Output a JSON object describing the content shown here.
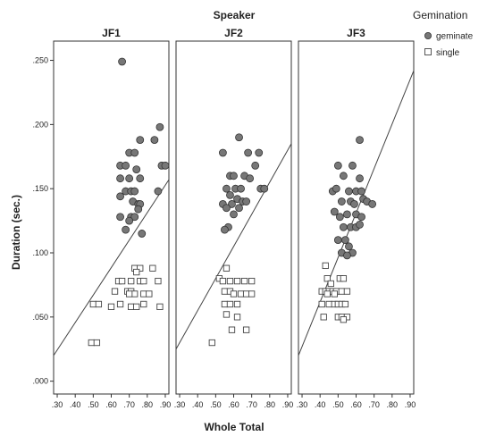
{
  "chart_data": {
    "type": "scatter",
    "super_title": "Speaker",
    "xlabel": "Whole Total",
    "ylabel": "Duration (sec.)",
    "xlim": [
      0.28,
      0.92
    ],
    "ylim": [
      -0.01,
      0.265
    ],
    "x_ticks": [
      ".30",
      ".40",
      ".50",
      ".60",
      ".70",
      ".80",
      ".90"
    ],
    "x_tick_values": [
      0.3,
      0.4,
      0.5,
      0.6,
      0.7,
      0.8,
      0.9
    ],
    "y_ticks": [
      ".000",
      ".050",
      ".100",
      ".150",
      ".200",
      ".250"
    ],
    "y_tick_values": [
      0.0,
      0.05,
      0.1,
      0.15,
      0.2,
      0.25
    ],
    "legend": {
      "title": "Gemination",
      "placement": "top-right",
      "entries": [
        {
          "label": "geminate",
          "marker": "filled-circle",
          "color": "#777777"
        },
        {
          "label": "single",
          "marker": "open-square",
          "color": "#ffffff"
        }
      ]
    },
    "panels": [
      {
        "title": "JF1",
        "fit_line": [
          [
            0.28,
            0.02
          ],
          [
            0.92,
            0.157
          ]
        ],
        "geminate": [
          [
            0.66,
            0.249
          ],
          [
            0.87,
            0.198
          ],
          [
            0.76,
            0.188
          ],
          [
            0.84,
            0.188
          ],
          [
            0.7,
            0.178
          ],
          [
            0.73,
            0.178
          ],
          [
            0.88,
            0.168
          ],
          [
            0.9,
            0.168
          ],
          [
            0.65,
            0.168
          ],
          [
            0.68,
            0.168
          ],
          [
            0.74,
            0.165
          ],
          [
            0.65,
            0.158
          ],
          [
            0.7,
            0.158
          ],
          [
            0.76,
            0.158
          ],
          [
            0.68,
            0.148
          ],
          [
            0.71,
            0.148
          ],
          [
            0.73,
            0.148
          ],
          [
            0.86,
            0.148
          ],
          [
            0.65,
            0.144
          ],
          [
            0.72,
            0.14
          ],
          [
            0.75,
            0.138
          ],
          [
            0.76,
            0.138
          ],
          [
            0.75,
            0.134
          ],
          [
            0.65,
            0.128
          ],
          [
            0.71,
            0.128
          ],
          [
            0.73,
            0.128
          ],
          [
            0.7,
            0.125
          ],
          [
            0.68,
            0.118
          ],
          [
            0.77,
            0.115
          ]
        ],
        "single": [
          [
            0.73,
            0.088
          ],
          [
            0.76,
            0.088
          ],
          [
            0.83,
            0.088
          ],
          [
            0.74,
            0.085
          ],
          [
            0.64,
            0.078
          ],
          [
            0.66,
            0.078
          ],
          [
            0.71,
            0.078
          ],
          [
            0.76,
            0.078
          ],
          [
            0.78,
            0.078
          ],
          [
            0.86,
            0.078
          ],
          [
            0.62,
            0.07
          ],
          [
            0.69,
            0.07
          ],
          [
            0.71,
            0.07
          ],
          [
            0.73,
            0.068
          ],
          [
            0.78,
            0.068
          ],
          [
            0.81,
            0.068
          ],
          [
            0.7,
            0.068
          ],
          [
            0.5,
            0.06
          ],
          [
            0.53,
            0.06
          ],
          [
            0.6,
            0.058
          ],
          [
            0.65,
            0.06
          ],
          [
            0.71,
            0.058
          ],
          [
            0.74,
            0.058
          ],
          [
            0.78,
            0.06
          ],
          [
            0.87,
            0.058
          ],
          [
            0.49,
            0.03
          ],
          [
            0.52,
            0.03
          ]
        ]
      },
      {
        "title": "JF2",
        "fit_line": [
          [
            0.28,
            0.025
          ],
          [
            0.92,
            0.185
          ]
        ],
        "geminate": [
          [
            0.63,
            0.19
          ],
          [
            0.54,
            0.178
          ],
          [
            0.68,
            0.178
          ],
          [
            0.74,
            0.178
          ],
          [
            0.72,
            0.168
          ],
          [
            0.58,
            0.16
          ],
          [
            0.6,
            0.16
          ],
          [
            0.66,
            0.16
          ],
          [
            0.69,
            0.158
          ],
          [
            0.56,
            0.15
          ],
          [
            0.61,
            0.15
          ],
          [
            0.64,
            0.15
          ],
          [
            0.75,
            0.15
          ],
          [
            0.77,
            0.15
          ],
          [
            0.58,
            0.145
          ],
          [
            0.62,
            0.142
          ],
          [
            0.65,
            0.14
          ],
          [
            0.67,
            0.14
          ],
          [
            0.54,
            0.138
          ],
          [
            0.59,
            0.138
          ],
          [
            0.56,
            0.135
          ],
          [
            0.63,
            0.135
          ],
          [
            0.6,
            0.13
          ],
          [
            0.57,
            0.12
          ],
          [
            0.55,
            0.118
          ]
        ],
        "single": [
          [
            0.56,
            0.088
          ],
          [
            0.52,
            0.08
          ],
          [
            0.54,
            0.078
          ],
          [
            0.58,
            0.078
          ],
          [
            0.62,
            0.078
          ],
          [
            0.66,
            0.078
          ],
          [
            0.7,
            0.078
          ],
          [
            0.55,
            0.07
          ],
          [
            0.58,
            0.07
          ],
          [
            0.6,
            0.068
          ],
          [
            0.64,
            0.068
          ],
          [
            0.67,
            0.068
          ],
          [
            0.7,
            0.068
          ],
          [
            0.55,
            0.06
          ],
          [
            0.58,
            0.06
          ],
          [
            0.62,
            0.06
          ],
          [
            0.56,
            0.052
          ],
          [
            0.62,
            0.05
          ],
          [
            0.59,
            0.04
          ],
          [
            0.67,
            0.04
          ],
          [
            0.48,
            0.03
          ]
        ]
      },
      {
        "title": "JF3",
        "fit_line": [
          [
            0.28,
            0.02
          ],
          [
            0.92,
            0.242
          ]
        ],
        "geminate": [
          [
            0.62,
            0.188
          ],
          [
            0.5,
            0.168
          ],
          [
            0.58,
            0.168
          ],
          [
            0.53,
            0.16
          ],
          [
            0.62,
            0.158
          ],
          [
            0.47,
            0.148
          ],
          [
            0.49,
            0.15
          ],
          [
            0.56,
            0.148
          ],
          [
            0.6,
            0.148
          ],
          [
            0.63,
            0.148
          ],
          [
            0.52,
            0.14
          ],
          [
            0.57,
            0.14
          ],
          [
            0.64,
            0.142
          ],
          [
            0.66,
            0.14
          ],
          [
            0.69,
            0.138
          ],
          [
            0.59,
            0.138
          ],
          [
            0.48,
            0.132
          ],
          [
            0.55,
            0.13
          ],
          [
            0.6,
            0.13
          ],
          [
            0.51,
            0.128
          ],
          [
            0.63,
            0.128
          ],
          [
            0.53,
            0.12
          ],
          [
            0.57,
            0.12
          ],
          [
            0.6,
            0.12
          ],
          [
            0.62,
            0.122
          ],
          [
            0.5,
            0.11
          ],
          [
            0.54,
            0.11
          ],
          [
            0.56,
            0.105
          ],
          [
            0.52,
            0.1
          ],
          [
            0.58,
            0.1
          ],
          [
            0.55,
            0.098
          ]
        ],
        "single": [
          [
            0.43,
            0.09
          ],
          [
            0.44,
            0.08
          ],
          [
            0.51,
            0.08
          ],
          [
            0.53,
            0.08
          ],
          [
            0.46,
            0.076
          ],
          [
            0.41,
            0.07
          ],
          [
            0.43,
            0.07
          ],
          [
            0.45,
            0.07
          ],
          [
            0.47,
            0.07
          ],
          [
            0.49,
            0.07
          ],
          [
            0.52,
            0.07
          ],
          [
            0.55,
            0.07
          ],
          [
            0.44,
            0.068
          ],
          [
            0.48,
            0.068
          ],
          [
            0.41,
            0.06
          ],
          [
            0.45,
            0.06
          ],
          [
            0.48,
            0.06
          ],
          [
            0.5,
            0.06
          ],
          [
            0.52,
            0.06
          ],
          [
            0.54,
            0.06
          ],
          [
            0.42,
            0.05
          ],
          [
            0.5,
            0.05
          ],
          [
            0.52,
            0.05
          ],
          [
            0.55,
            0.05
          ],
          [
            0.53,
            0.048
          ]
        ]
      }
    ]
  }
}
